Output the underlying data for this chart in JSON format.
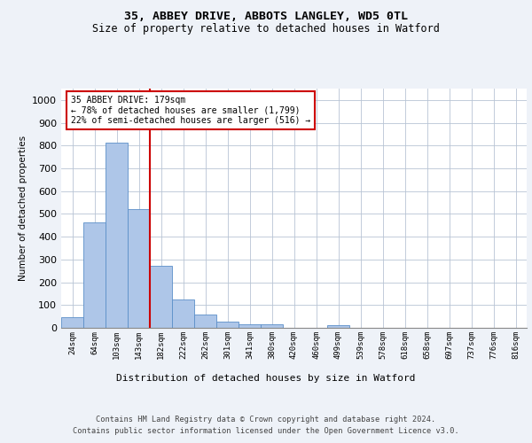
{
  "title1": "35, ABBEY DRIVE, ABBOTS LANGLEY, WD5 0TL",
  "title2": "Size of property relative to detached houses in Watford",
  "xlabel": "Distribution of detached houses by size in Watford",
  "ylabel": "Number of detached properties",
  "bin_labels": [
    "24sqm",
    "64sqm",
    "103sqm",
    "143sqm",
    "182sqm",
    "222sqm",
    "262sqm",
    "301sqm",
    "341sqm",
    "380sqm",
    "420sqm",
    "460sqm",
    "499sqm",
    "539sqm",
    "578sqm",
    "618sqm",
    "658sqm",
    "697sqm",
    "737sqm",
    "776sqm",
    "816sqm"
  ],
  "bar_heights": [
    46,
    462,
    812,
    522,
    272,
    126,
    60,
    26,
    14,
    14,
    0,
    0,
    10,
    0,
    0,
    0,
    0,
    0,
    0,
    0,
    0
  ],
  "bar_color": "#aec6e8",
  "bar_edge_color": "#5b8fc9",
  "property_line_bin": 4.0,
  "annotation_text": "35 ABBEY DRIVE: 179sqm\n← 78% of detached houses are smaller (1,799)\n22% of semi-detached houses are larger (516) →",
  "annotation_box_color": "#ffffff",
  "annotation_box_edge_color": "#cc0000",
  "vline_color": "#cc0000",
  "footer_line1": "Contains HM Land Registry data © Crown copyright and database right 2024.",
  "footer_line2": "Contains public sector information licensed under the Open Government Licence v3.0.",
  "ylim": [
    0,
    1050
  ],
  "yticks": [
    0,
    100,
    200,
    300,
    400,
    500,
    600,
    700,
    800,
    900,
    1000
  ],
  "bg_color": "#eef2f8",
  "plot_bg_color": "#ffffff"
}
